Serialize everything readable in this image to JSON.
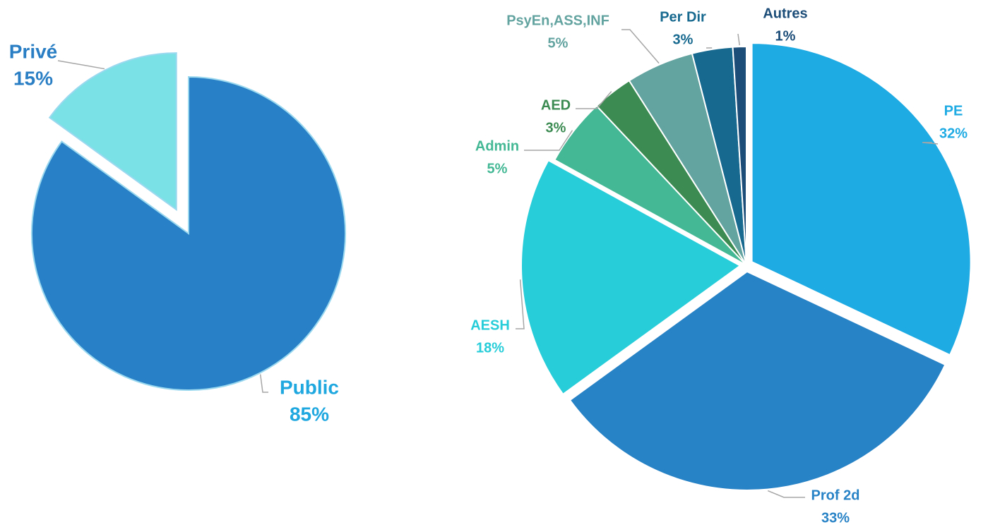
{
  "chart_data": [
    {
      "type": "pie",
      "categories": [
        "Public",
        "Privé"
      ],
      "values": [
        85,
        15
      ],
      "value_labels": [
        "85%",
        "15%"
      ],
      "colors": [
        "#2880c6",
        "#7ae1e6"
      ],
      "label_colors": [
        "#1fa7e0",
        "#2a7fc4"
      ],
      "exploded": [
        false,
        true
      ]
    },
    {
      "type": "pie",
      "categories": [
        "PE",
        "Prof 2d",
        "AESH",
        "Admin",
        "AED",
        "PsyEn,ASS,INF",
        "Per Dir",
        "Autres"
      ],
      "values": [
        32,
        33,
        18,
        5,
        3,
        5,
        3,
        1
      ],
      "value_labels": [
        "32%",
        "33%",
        "18%",
        "5%",
        "3%",
        "5%",
        "3%",
        "1%"
      ],
      "colors": [
        "#1eaae3",
        "#2882c6",
        "#27cdd8",
        "#44b894",
        "#3b8b52",
        "#63a3a0",
        "#17698f",
        "#1c4d78"
      ],
      "label_colors": [
        "#1eaae3",
        "#2882c6",
        "#27cdd8",
        "#44b894",
        "#3b8b52",
        "#63a3a0",
        "#17698f",
        "#1c4d78"
      ],
      "exploded": [
        true,
        true,
        true,
        false,
        false,
        false,
        false,
        false
      ]
    }
  ]
}
